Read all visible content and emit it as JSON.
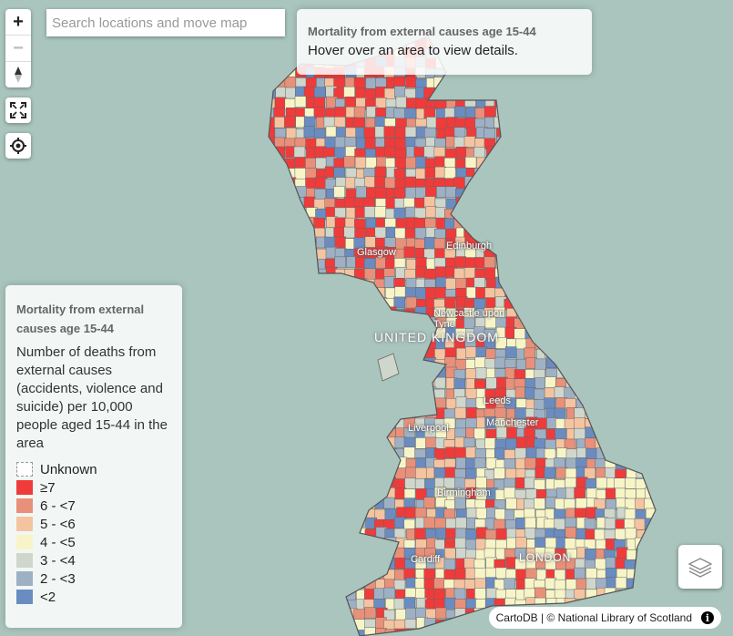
{
  "search": {
    "placeholder": "Search locations and move map"
  },
  "zoom": {
    "in_label": "+",
    "out_label": "−"
  },
  "info_panel": {
    "title": "Mortality from external causes age 15-44",
    "hint": "Hover over an area to view details."
  },
  "legend": {
    "title": "Mortality from external causes age 15-44",
    "description": "Number of deaths from external causes (accidents, violence and suicide) per 10,000 people aged 15-44 in the area",
    "items": [
      {
        "label": "Unknown",
        "color": "#ffffff"
      },
      {
        "label": "≥7",
        "color": "#f03b3b"
      },
      {
        "label": "6 - <7",
        "color": "#e8907a"
      },
      {
        "label": "5 - <6",
        "color": "#f4c4a1"
      },
      {
        "label": "4 - <5",
        "color": "#f7f5c8"
      },
      {
        "label": "3 - <4",
        "color": "#cfd6cc"
      },
      {
        "label": "2 - <3",
        "color": "#9eb0c4"
      },
      {
        "label": "<2",
        "color": "#6a8cc0"
      }
    ]
  },
  "map_labels": {
    "glasgow": "Glasgow",
    "edinburgh": "Edinburgh",
    "newcastle": "Newcastle upon Tyne",
    "country": "UNITED KINGDOM",
    "leeds": "Leeds",
    "liverpool": "Liverpool",
    "manchester": "Manchester",
    "birmingham": "Birmingham",
    "cardiff": "Cardiff",
    "london": "LONDON"
  },
  "attribution": {
    "text": "CartoDB | © National Library of Scotland",
    "info_icon": "i"
  },
  "colors": {
    "sea": "#a9c5bd",
    "boundary": "#555555"
  }
}
